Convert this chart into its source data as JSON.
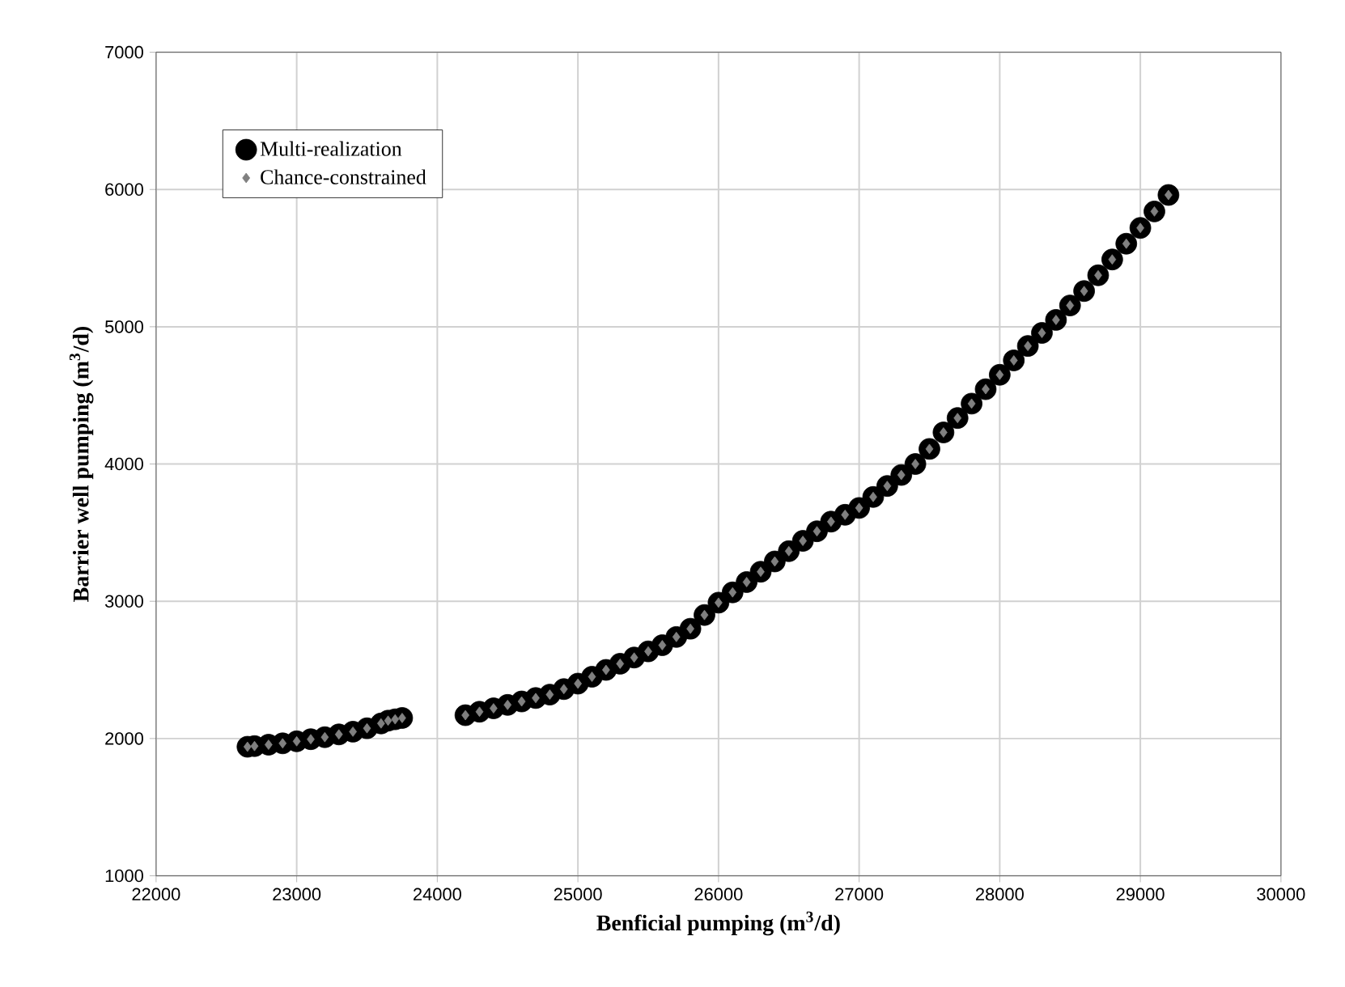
{
  "chart_data": {
    "type": "scatter",
    "xlabel": "Benficial pumping (m$^{3}$/d)",
    "ylabel": "Barrier well pumping (m$^{3}$/d)",
    "xlim": [
      22000,
      30000
    ],
    "xticks": [
      22000,
      23000,
      24000,
      25000,
      26000,
      27000,
      28000,
      29000,
      30000
    ],
    "ylim": [
      1000,
      7000
    ],
    "yticks": [
      1000,
      2000,
      3000,
      4000,
      5000,
      6000,
      7000
    ],
    "grid": true,
    "legend": "top left",
    "series": [
      {
        "name": "Multi-realization",
        "color": "#000000",
        "marker": "circle",
        "x": [
          22650,
          22700,
          22800,
          22900,
          23000,
          23100,
          23200,
          23300,
          23400,
          23500,
          23600,
          23650,
          23700,
          23750,
          24200,
          24300,
          24400,
          24500,
          24600,
          24700,
          24800,
          24900,
          25000,
          25100,
          25200,
          25300,
          25400,
          25500,
          25600,
          25700,
          25800,
          25900,
          26000,
          26100,
          26200,
          26300,
          26400,
          26500,
          26600,
          26700,
          26800,
          26900,
          27000,
          27100,
          27200,
          27300,
          27400,
          27500,
          27600,
          27700,
          27800,
          27900,
          28000,
          28100,
          28200,
          28300,
          28400,
          28500,
          28600,
          28700,
          28800,
          28900,
          29000,
          29100,
          29200
        ],
        "values": [
          1940,
          1945,
          1955,
          1965,
          1980,
          1995,
          2010,
          2030,
          2050,
          2075,
          2110,
          2130,
          2140,
          2150,
          2170,
          2195,
          2220,
          2245,
          2270,
          2295,
          2320,
          2360,
          2400,
          2450,
          2500,
          2545,
          2590,
          2635,
          2680,
          2740,
          2800,
          2900,
          2990,
          3065,
          3140,
          3215,
          3290,
          3365,
          3440,
          3510,
          3580,
          3630,
          3680,
          3760,
          3840,
          3920,
          4000,
          4110,
          4230,
          4335,
          4440,
          4545,
          4650,
          4755,
          4860,
          4955,
          5050,
          5155,
          5260,
          5375,
          5490,
          5605,
          5720,
          5840,
          5960
        ]
      },
      {
        "name": "Chance-constrained",
        "color": "#808080",
        "marker": "diamond",
        "x": [
          22650,
          22700,
          22800,
          22900,
          23000,
          23100,
          23200,
          23300,
          23400,
          23500,
          23600,
          23650,
          23700,
          23750,
          24200,
          24300,
          24400,
          24500,
          24600,
          24700,
          24800,
          24900,
          25000,
          25100,
          25200,
          25300,
          25400,
          25500,
          25600,
          25700,
          25800,
          25900,
          26000,
          26100,
          26200,
          26300,
          26400,
          26500,
          26600,
          26700,
          26800,
          26900,
          27000,
          27100,
          27200,
          27300,
          27400,
          27500,
          27600,
          27700,
          27800,
          27900,
          28000,
          28100,
          28200,
          28300,
          28400,
          28500,
          28600,
          28700,
          28800,
          28900,
          29000,
          29100,
          29200
        ],
        "values": [
          1940,
          1945,
          1955,
          1965,
          1980,
          1995,
          2010,
          2030,
          2050,
          2075,
          2110,
          2130,
          2140,
          2150,
          2170,
          2195,
          2220,
          2245,
          2270,
          2295,
          2320,
          2360,
          2400,
          2450,
          2500,
          2545,
          2590,
          2635,
          2680,
          2740,
          2800,
          2900,
          2990,
          3065,
          3140,
          3215,
          3290,
          3365,
          3440,
          3510,
          3580,
          3630,
          3680,
          3760,
          3840,
          3920,
          4000,
          4110,
          4230,
          4335,
          4440,
          4545,
          4650,
          4755,
          4860,
          4955,
          5050,
          5155,
          5260,
          5375,
          5490,
          5605,
          5720,
          5840,
          5960
        ]
      }
    ]
  }
}
